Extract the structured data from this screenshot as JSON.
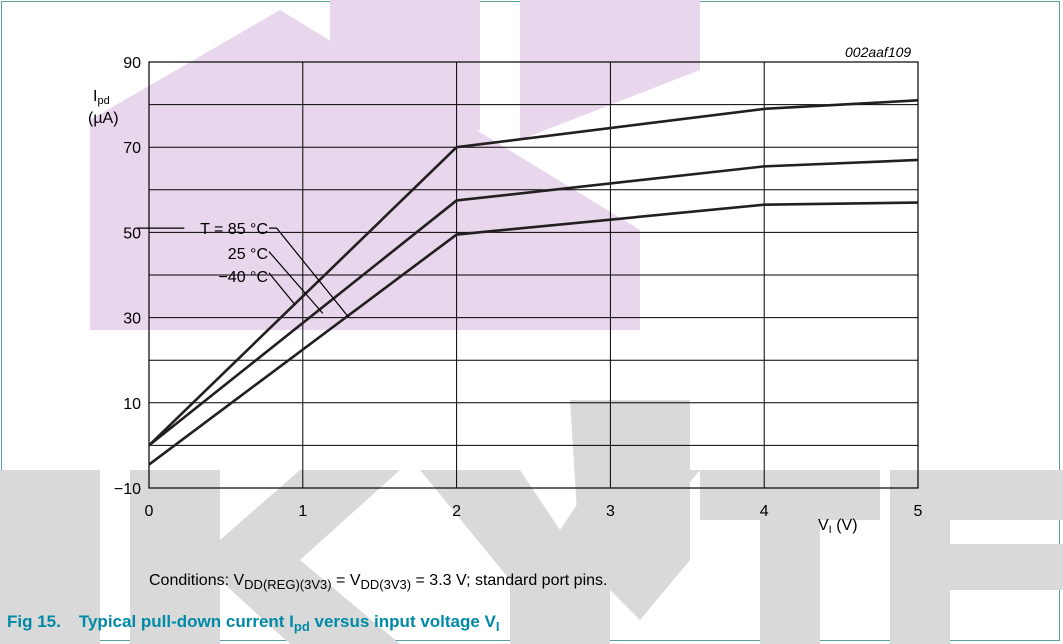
{
  "figure_id": "002aaf109",
  "watermark": "SKYTECH",
  "y_label": {
    "main": "I",
    "sub": "pd",
    "unit": "(µA)"
  },
  "x_label": {
    "main": "V",
    "sub": "I",
    "unit": "(V)"
  },
  "conditions": {
    "prefix": "Conditions: V",
    "sub1": "DD(REG)(3V3)",
    "mid": " = V",
    "sub2": "DD(3V3)",
    "suffix": " = 3.3 V; standard port pins."
  },
  "caption": {
    "number": "Fig 15.",
    "text1": "Typical pull-down current I",
    "sub1": "pd",
    "text2": " versus input voltage V",
    "sub2": "I"
  },
  "colors": {
    "caption": "#008aa8",
    "watermark": "#e8d6ec",
    "frame": "#5f9ea0"
  },
  "chart_data": {
    "type": "line",
    "xlim": [
      0,
      5
    ],
    "ylim": [
      -10,
      90
    ],
    "x_ticks": [
      0,
      1,
      2,
      3,
      4,
      5
    ],
    "y_ticks": [
      -10,
      10,
      30,
      50,
      70,
      90
    ],
    "grid": true,
    "series": [
      {
        "name": "T = 85 °C",
        "x": [
          0,
          2,
          4,
          5
        ],
        "y": [
          0,
          70,
          79,
          81
        ]
      },
      {
        "name": "25 °C",
        "x": [
          0,
          2,
          4,
          5
        ],
        "y": [
          0,
          57.5,
          65.5,
          67
        ]
      },
      {
        "name": "−40 °C",
        "x": [
          0,
          2,
          4,
          5
        ],
        "y": [
          -4.5,
          49.5,
          56.5,
          57
        ]
      }
    ]
  }
}
